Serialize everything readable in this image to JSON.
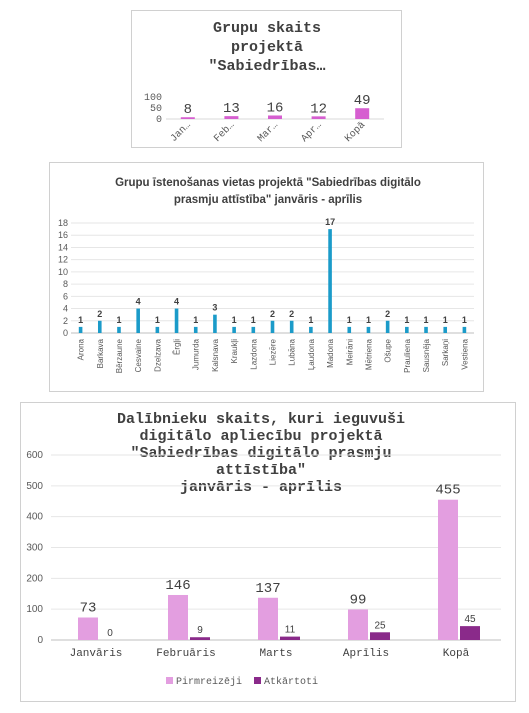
{
  "chart_data": [
    {
      "type": "bar",
      "title_lines": [
        "Grupu skaits",
        "projektā",
        "\"Sabiedrības…"
      ],
      "categories": [
        "Jan…",
        "Feb…",
        "Mar…",
        "Apr…",
        "Kopā"
      ],
      "values": [
        8,
        13,
        16,
        12,
        49
      ],
      "yticks": [
        "0",
        "50",
        "100"
      ],
      "ylim": [
        0,
        100
      ],
      "color": "#d65fd0",
      "data_labels": true,
      "grid": false
    },
    {
      "type": "bar",
      "title_lines": [
        "Grupu īstenošanas vietas projektā \"Sabiedrības digitālo",
        "prasmju attīstība\" janvāris - aprīlis"
      ],
      "categories": [
        "Arona",
        "Barkava",
        "Bērzaune",
        "Cesvaine",
        "Dzelzava",
        "Ērgļi",
        "Jumurda",
        "Kalsnava",
        "Kraukļi",
        "Lazdona",
        "Liezēre",
        "Lubāna",
        "Ļaudona",
        "Madona",
        "Meirāni",
        "Mētriena",
        "Ošupe",
        "Praulienа",
        "Sausnēja",
        "Sarkaņi",
        "Vestiena"
      ],
      "values": [
        1,
        2,
        1,
        4,
        1,
        4,
        1,
        3,
        1,
        1,
        2,
        2,
        1,
        17,
        1,
        1,
        2,
        1,
        1,
        1,
        1
      ],
      "yticks": [
        "0",
        "2",
        "4",
        "6",
        "8",
        "10",
        "12",
        "14",
        "16",
        "18"
      ],
      "ylim": [
        0,
        18
      ],
      "color": "#1b9bc9",
      "data_labels": true,
      "grid": true
    },
    {
      "type": "bar",
      "title_lines": [
        "Dalībnieku skaits, kuri ieguvuši",
        "digitālo apliecību projektā",
        "\"Sabiedrības digitālo prasmju",
        "attīstība\"",
        "janvāris - aprīlis"
      ],
      "categories": [
        "Janvāris",
        "Februāris",
        "Marts",
        "Aprīlis",
        "Kopā"
      ],
      "series": [
        {
          "name": "Pirmreizēji",
          "values": [
            73,
            146,
            137,
            99,
            455
          ],
          "color": "#e39ee0"
        },
        {
          "name": "Atkārtoti",
          "values": [
            0,
            9,
            11,
            25,
            45
          ],
          "color": "#8a2a8a"
        }
      ],
      "yticks": [
        "0",
        "100",
        "200",
        "300",
        "400",
        "500",
        "600"
      ],
      "ylim": [
        0,
        600
      ],
      "legend": "bottom",
      "data_labels": true,
      "grid": true
    }
  ]
}
